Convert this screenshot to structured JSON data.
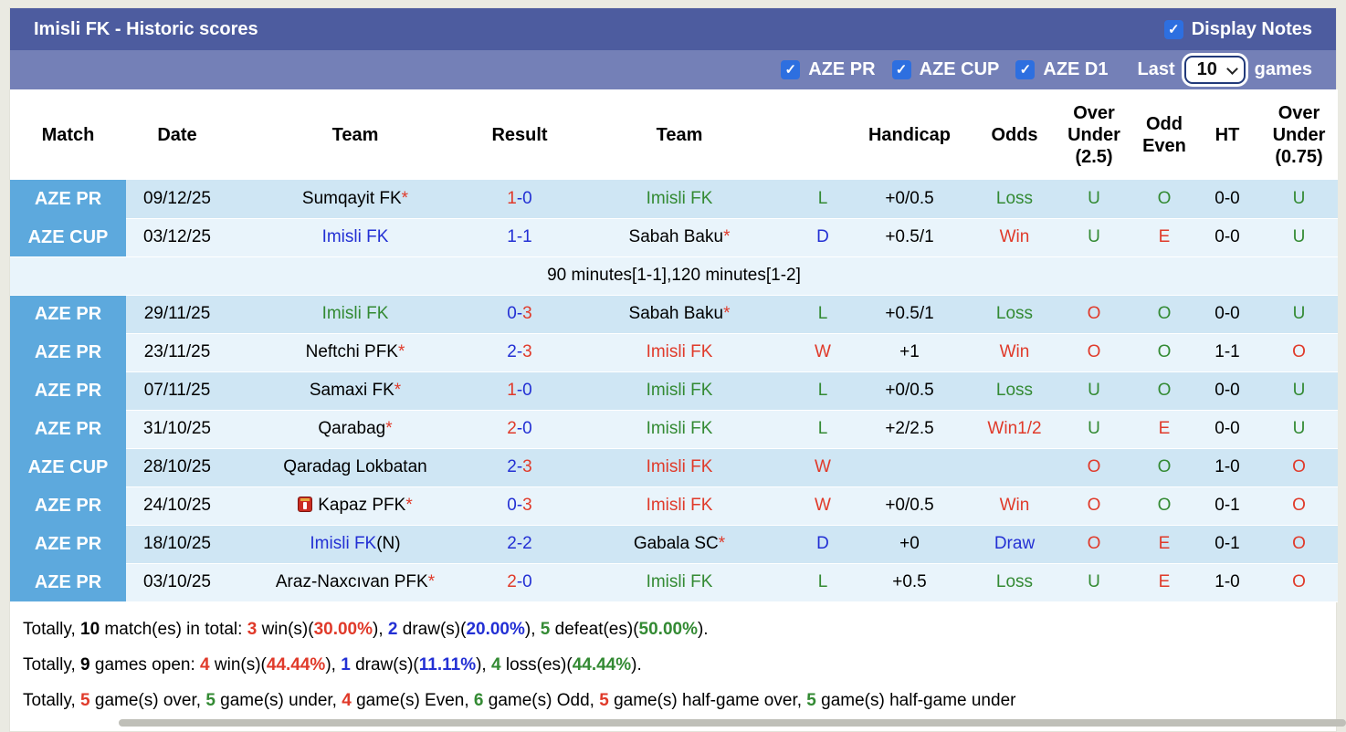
{
  "colors": {
    "red": "#e03a2a",
    "green": "#338a33",
    "blue": "#2330d4",
    "black": "#000000",
    "badge_blue": "#5da9dd",
    "title_bar": "#4d5c9f",
    "filter_bar": "#7480b7",
    "checkbox_blue": "#2d6fe0",
    "row_dark": "#cfe6f4",
    "row_light": "#e9f4fb"
  },
  "header": {
    "title": "Imisli FK - Historic scores",
    "display_notes_label": "Display Notes",
    "display_notes_checked": "checked"
  },
  "filters": {
    "leagues": [
      "AZE PR",
      "AZE CUP",
      "AZE D1"
    ],
    "last_label": "Last",
    "last_value": "10",
    "games_label": "games"
  },
  "table": {
    "headers": [
      "Match",
      "Date",
      "Team",
      "Result",
      "Team",
      "",
      "Handicap",
      "Odds",
      "Over\nUnder\n(2.5)",
      "Odd\nEven",
      "HT",
      "Over\nUnder\n(0.75)"
    ],
    "rows": [
      {
        "type": "match",
        "shade": "dark",
        "league": "AZE PR",
        "date": "09/12/25",
        "team1": [
          {
            "text": "Sumqayit FK",
            "color": "black"
          },
          {
            "text": "*",
            "color": "red"
          }
        ],
        "result": [
          {
            "text": "1",
            "color": "red"
          },
          {
            "text": "-",
            "color": "blue"
          },
          {
            "text": "0",
            "color": "blue"
          }
        ],
        "team2": [
          {
            "text": "Imisli FK",
            "color": "green"
          }
        ],
        "wld": {
          "text": "L",
          "color": "green"
        },
        "handicap": "+0/0.5",
        "odds": {
          "text": "Loss",
          "color": "green"
        },
        "ou25": {
          "text": "U",
          "color": "green"
        },
        "oddeven": {
          "text": "O",
          "color": "green"
        },
        "ht": "0-0",
        "ou075": {
          "text": "U",
          "color": "green"
        }
      },
      {
        "type": "match",
        "shade": "light",
        "league": "AZE CUP",
        "date": "03/12/25",
        "team1": [
          {
            "text": "Imisli FK",
            "color": "blue"
          }
        ],
        "result": [
          {
            "text": "1",
            "color": "blue"
          },
          {
            "text": "-",
            "color": "blue"
          },
          {
            "text": "1",
            "color": "blue"
          }
        ],
        "team2": [
          {
            "text": "Sabah Baku",
            "color": "black"
          },
          {
            "text": "*",
            "color": "red"
          }
        ],
        "wld": {
          "text": "D",
          "color": "blue"
        },
        "handicap": "+0.5/1",
        "odds": {
          "text": "Win",
          "color": "red"
        },
        "ou25": {
          "text": "U",
          "color": "green"
        },
        "oddeven": {
          "text": "E",
          "color": "red"
        },
        "ht": "0-0",
        "ou075": {
          "text": "U",
          "color": "green"
        }
      },
      {
        "type": "note",
        "text": "90 minutes[1-1],120 minutes[1-2]"
      },
      {
        "type": "match",
        "shade": "dark",
        "league": "AZE PR",
        "date": "29/11/25",
        "team1": [
          {
            "text": "Imisli FK",
            "color": "green"
          }
        ],
        "result": [
          {
            "text": "0",
            "color": "blue"
          },
          {
            "text": "-",
            "color": "blue"
          },
          {
            "text": "3",
            "color": "red"
          }
        ],
        "team2": [
          {
            "text": "Sabah Baku",
            "color": "black"
          },
          {
            "text": "*",
            "color": "red"
          }
        ],
        "wld": {
          "text": "L",
          "color": "green"
        },
        "handicap": "+0.5/1",
        "odds": {
          "text": "Loss",
          "color": "green"
        },
        "ou25": {
          "text": "O",
          "color": "red"
        },
        "oddeven": {
          "text": "O",
          "color": "green"
        },
        "ht": "0-0",
        "ou075": {
          "text": "U",
          "color": "green"
        }
      },
      {
        "type": "match",
        "shade": "light",
        "league": "AZE PR",
        "date": "23/11/25",
        "team1": [
          {
            "text": "Neftchi PFK",
            "color": "black"
          },
          {
            "text": "*",
            "color": "red"
          }
        ],
        "result": [
          {
            "text": "2",
            "color": "blue"
          },
          {
            "text": "-",
            "color": "blue"
          },
          {
            "text": "3",
            "color": "red"
          }
        ],
        "team2": [
          {
            "text": "Imisli FK",
            "color": "red"
          }
        ],
        "wld": {
          "text": "W",
          "color": "red"
        },
        "handicap": "+1",
        "odds": {
          "text": "Win",
          "color": "red"
        },
        "ou25": {
          "text": "O",
          "color": "red"
        },
        "oddeven": {
          "text": "O",
          "color": "green"
        },
        "ht": "1-1",
        "ou075": {
          "text": "O",
          "color": "red"
        }
      },
      {
        "type": "match",
        "shade": "dark",
        "league": "AZE PR",
        "date": "07/11/25",
        "team1": [
          {
            "text": "Samaxi FK",
            "color": "black"
          },
          {
            "text": "*",
            "color": "red"
          }
        ],
        "result": [
          {
            "text": "1",
            "color": "red"
          },
          {
            "text": "-",
            "color": "blue"
          },
          {
            "text": "0",
            "color": "blue"
          }
        ],
        "team2": [
          {
            "text": "Imisli FK",
            "color": "green"
          }
        ],
        "wld": {
          "text": "L",
          "color": "green"
        },
        "handicap": "+0/0.5",
        "odds": {
          "text": "Loss",
          "color": "green"
        },
        "ou25": {
          "text": "U",
          "color": "green"
        },
        "oddeven": {
          "text": "O",
          "color": "green"
        },
        "ht": "0-0",
        "ou075": {
          "text": "U",
          "color": "green"
        }
      },
      {
        "type": "match",
        "shade": "light",
        "league": "AZE PR",
        "date": "31/10/25",
        "team1": [
          {
            "text": "Qarabag",
            "color": "black"
          },
          {
            "text": "*",
            "color": "red"
          }
        ],
        "result": [
          {
            "text": "2",
            "color": "red"
          },
          {
            "text": "-",
            "color": "blue"
          },
          {
            "text": "0",
            "color": "blue"
          }
        ],
        "team2": [
          {
            "text": "Imisli FK",
            "color": "green"
          }
        ],
        "wld": {
          "text": "L",
          "color": "green"
        },
        "handicap": "+2/2.5",
        "odds": {
          "text": "Win1/2",
          "color": "red"
        },
        "ou25": {
          "text": "U",
          "color": "green"
        },
        "oddeven": {
          "text": "E",
          "color": "red"
        },
        "ht": "0-0",
        "ou075": {
          "text": "U",
          "color": "green"
        }
      },
      {
        "type": "match",
        "shade": "dark",
        "league": "AZE CUP",
        "date": "28/10/25",
        "team1": [
          {
            "text": "Qaradag Lokbatan",
            "color": "black"
          }
        ],
        "result": [
          {
            "text": "2",
            "color": "blue"
          },
          {
            "text": "-",
            "color": "blue"
          },
          {
            "text": "3",
            "color": "red"
          }
        ],
        "team2": [
          {
            "text": "Imisli FK",
            "color": "red"
          }
        ],
        "wld": {
          "text": "W",
          "color": "red"
        },
        "handicap": "",
        "odds": {
          "text": "",
          "color": "black"
        },
        "ou25": {
          "text": "O",
          "color": "red"
        },
        "oddeven": {
          "text": "O",
          "color": "green"
        },
        "ht": "1-0",
        "ou075": {
          "text": "O",
          "color": "red"
        }
      },
      {
        "type": "match",
        "shade": "light",
        "league": "AZE PR",
        "date": "24/10/25",
        "team1": [
          {
            "icon": "red-card-icon"
          },
          {
            "text": "Kapaz PFK",
            "color": "black"
          },
          {
            "text": "*",
            "color": "red"
          }
        ],
        "result": [
          {
            "text": "0",
            "color": "blue"
          },
          {
            "text": "-",
            "color": "blue"
          },
          {
            "text": "3",
            "color": "red"
          }
        ],
        "team2": [
          {
            "text": "Imisli FK",
            "color": "red"
          }
        ],
        "wld": {
          "text": "W",
          "color": "red"
        },
        "handicap": "+0/0.5",
        "odds": {
          "text": "Win",
          "color": "red"
        },
        "ou25": {
          "text": "O",
          "color": "red"
        },
        "oddeven": {
          "text": "O",
          "color": "green"
        },
        "ht": "0-1",
        "ou075": {
          "text": "O",
          "color": "red"
        }
      },
      {
        "type": "match",
        "shade": "dark",
        "league": "AZE PR",
        "date": "18/10/25",
        "team1": [
          {
            "text": "Imisli FK",
            "color": "blue"
          },
          {
            "text": "(N)",
            "color": "black"
          }
        ],
        "result": [
          {
            "text": "2",
            "color": "blue"
          },
          {
            "text": "-",
            "color": "blue"
          },
          {
            "text": "2",
            "color": "blue"
          }
        ],
        "team2": [
          {
            "text": "Gabala SC",
            "color": "black"
          },
          {
            "text": "*",
            "color": "red"
          }
        ],
        "wld": {
          "text": "D",
          "color": "blue"
        },
        "handicap": "+0",
        "odds": {
          "text": "Draw",
          "color": "blue"
        },
        "ou25": {
          "text": "O",
          "color": "red"
        },
        "oddeven": {
          "text": "E",
          "color": "red"
        },
        "ht": "0-1",
        "ou075": {
          "text": "O",
          "color": "red"
        }
      },
      {
        "type": "match",
        "shade": "light",
        "league": "AZE PR",
        "date": "03/10/25",
        "team1": [
          {
            "text": "Araz-Naxcıvan PFK",
            "color": "black"
          },
          {
            "text": "*",
            "color": "red"
          }
        ],
        "result": [
          {
            "text": "2",
            "color": "red"
          },
          {
            "text": "-",
            "color": "blue"
          },
          {
            "text": "0",
            "color": "blue"
          }
        ],
        "team2": [
          {
            "text": "Imisli FK",
            "color": "green"
          }
        ],
        "wld": {
          "text": "L",
          "color": "green"
        },
        "handicap": "+0.5",
        "odds": {
          "text": "Loss",
          "color": "green"
        },
        "ou25": {
          "text": "U",
          "color": "green"
        },
        "oddeven": {
          "text": "E",
          "color": "red"
        },
        "ht": "1-0",
        "ou075": {
          "text": "O",
          "color": "red"
        }
      }
    ]
  },
  "summary": {
    "lines": [
      [
        {
          "text": "Totally, "
        },
        {
          "text": "10",
          "bold": true
        },
        {
          "text": " match(es) in total: "
        },
        {
          "text": "3",
          "color": "red",
          "bold": true
        },
        {
          "text": " win(s)("
        },
        {
          "text": "30.00%",
          "color": "red",
          "bold": true
        },
        {
          "text": "), "
        },
        {
          "text": "2",
          "color": "blue",
          "bold": true
        },
        {
          "text": " draw(s)("
        },
        {
          "text": "20.00%",
          "color": "blue",
          "bold": true
        },
        {
          "text": "), "
        },
        {
          "text": "5",
          "color": "green",
          "bold": true
        },
        {
          "text": " defeat(es)("
        },
        {
          "text": "50.00%",
          "color": "green",
          "bold": true
        },
        {
          "text": ")."
        }
      ],
      [
        {
          "text": "Totally, "
        },
        {
          "text": "9",
          "bold": true
        },
        {
          "text": " games open: "
        },
        {
          "text": "4",
          "color": "red",
          "bold": true
        },
        {
          "text": " win(s)("
        },
        {
          "text": "44.44%",
          "color": "red",
          "bold": true
        },
        {
          "text": "), "
        },
        {
          "text": "1",
          "color": "blue",
          "bold": true
        },
        {
          "text": " draw(s)("
        },
        {
          "text": "11.11%",
          "color": "blue",
          "bold": true
        },
        {
          "text": "), "
        },
        {
          "text": "4",
          "color": "green",
          "bold": true
        },
        {
          "text": " loss(es)("
        },
        {
          "text": "44.44%",
          "color": "green",
          "bold": true
        },
        {
          "text": ")."
        }
      ],
      [
        {
          "text": "Totally, "
        },
        {
          "text": "5",
          "color": "red",
          "bold": true
        },
        {
          "text": " game(s) over, "
        },
        {
          "text": "5",
          "color": "green",
          "bold": true
        },
        {
          "text": " game(s) under, "
        },
        {
          "text": "4",
          "color": "red",
          "bold": true
        },
        {
          "text": " game(s) Even, "
        },
        {
          "text": "6",
          "color": "green",
          "bold": true
        },
        {
          "text": " game(s) Odd, "
        },
        {
          "text": "5",
          "color": "red",
          "bold": true
        },
        {
          "text": " game(s) half-game over, "
        },
        {
          "text": "5",
          "color": "green",
          "bold": true
        },
        {
          "text": " game(s) half-game under"
        }
      ]
    ]
  }
}
